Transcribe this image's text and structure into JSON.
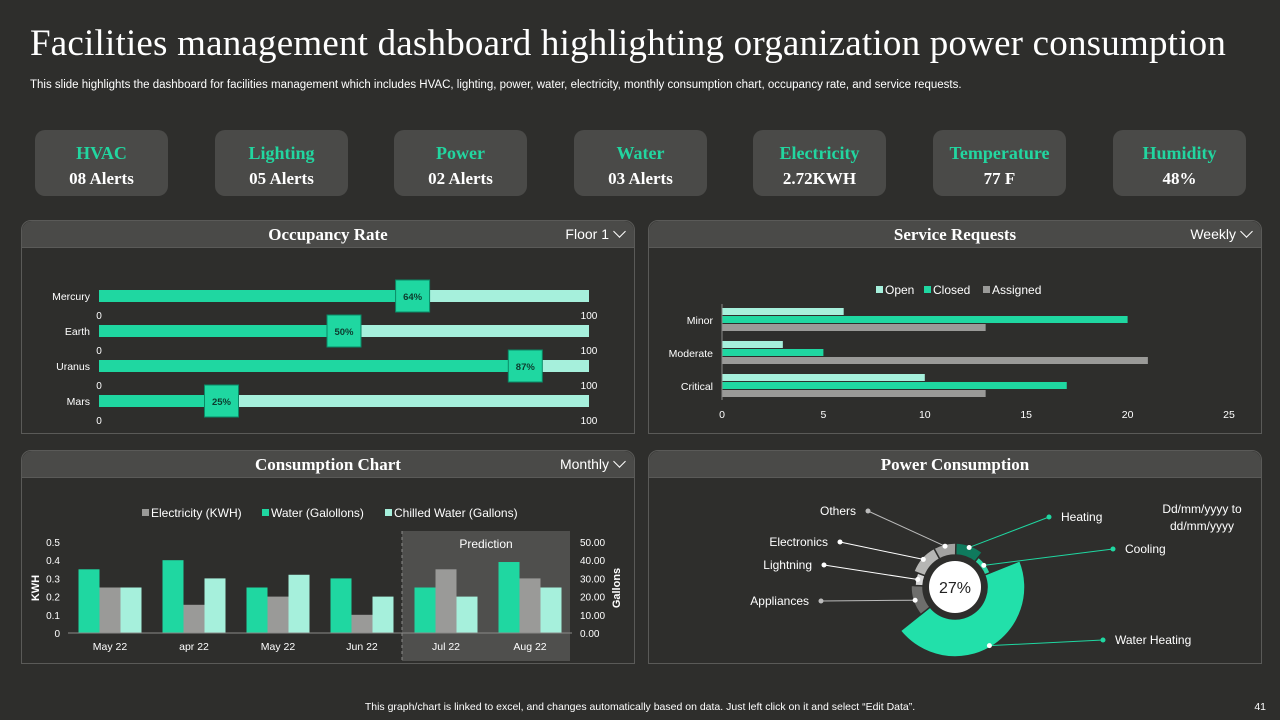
{
  "header": {
    "title": "Facilities management dashboard highlighting organization power consumption",
    "subtitle": "This slide highlights the dashboard for facilities management which includes HVAC, lighting, power, water, electricity,  monthly consumption chart, occupancy rate,  and service requests."
  },
  "kpis": [
    {
      "label": "HVAC",
      "value": "08 Alerts"
    },
    {
      "label": "Lighting",
      "value": "05 Alerts"
    },
    {
      "label": "Power",
      "value": "02 Alerts"
    },
    {
      "label": "Water",
      "value": "03 Alerts"
    },
    {
      "label": "Electricity",
      "value": "2.72KWH"
    },
    {
      "label": "Temperature",
      "value": "77  F"
    },
    {
      "label": "Humidity",
      "value": "48%"
    }
  ],
  "panels": {
    "occupancy": {
      "title": "Occupancy Rate",
      "dropdown": "Floor 1"
    },
    "service": {
      "title": "Service Requests",
      "dropdown": "Weekly"
    },
    "consumption": {
      "title": "Consumption Chart",
      "dropdown": "Monthly"
    },
    "power": {
      "title": "Power Consumption"
    }
  },
  "colors": {
    "accent": "#1fd7a1",
    "light": "#a6f0dc",
    "gray": "#9a9a98",
    "dark": "#2e2e2c",
    "panel": "#4a4a48"
  },
  "chart_data": [
    {
      "id": "occupancy",
      "type": "bar",
      "orientation": "horizontal",
      "title": "Occupancy Rate",
      "categories": [
        "Mercury",
        "Earth",
        "Uranus",
        "Mars"
      ],
      "values": [
        64,
        50,
        87,
        25
      ],
      "labels": [
        "64%",
        "50%",
        "87%",
        "25%"
      ],
      "axis_min": "0",
      "axis_max": "100",
      "xlim": [
        0,
        100
      ]
    },
    {
      "id": "service",
      "type": "bar",
      "orientation": "horizontal",
      "title": "Service Requests",
      "categories": [
        "Minor",
        "Moderate",
        "Critical"
      ],
      "series": [
        {
          "name": "Open",
          "values": [
            6,
            3,
            10
          ]
        },
        {
          "name": "Closed",
          "values": [
            20,
            5,
            17
          ]
        },
        {
          "name": "Assigned",
          "values": [
            13,
            21,
            13
          ]
        }
      ],
      "xticks": [
        "0",
        "5",
        "10",
        "15",
        "20",
        "25"
      ],
      "xlim": [
        0,
        25
      ],
      "legend": "top"
    },
    {
      "id": "consumption",
      "type": "bar",
      "title": "Consumption Chart",
      "categories": [
        "May 22",
        "apr 22",
        "May 22",
        "Jun 22",
        "Jul 22",
        "Aug 22"
      ],
      "series": [
        {
          "name": "Electricity (KWH)",
          "values": [
            0.35,
            0.4,
            0.25,
            0.3,
            0.25,
            0.39
          ]
        },
        {
          "name": "Water (Galollons)",
          "values": [
            0.25,
            0.155,
            0.2,
            0.1,
            0.35,
            0.3
          ]
        },
        {
          "name": "Chilled Water (Gallons)",
          "values": [
            0.25,
            0.3,
            0.32,
            0.2,
            0.2,
            0.25
          ]
        }
      ],
      "ylabel": "KWH",
      "y2label": "Gallons",
      "yticks": [
        "0",
        "0.1",
        "0.2",
        "0.3",
        "0.4",
        "0.5"
      ],
      "y2ticks": [
        "0.00",
        "10.00",
        "20.00",
        "30.00",
        "40.00",
        "50.00"
      ],
      "ylim": [
        0,
        0.5
      ],
      "prediction_label": "Prediction",
      "legend": "top"
    },
    {
      "id": "power",
      "type": "pie",
      "title": "Power Consumption",
      "center_label": "27%",
      "date_label": "Dd/mm/yyyy to dd/mm/yyyy",
      "slices": [
        {
          "label": "Heating",
          "value": 10
        },
        {
          "label": "Cooling",
          "value": 8
        },
        {
          "label": "Water Heating",
          "value": 44
        },
        {
          "label": "Appliances",
          "value": 11
        },
        {
          "label": "Lightning",
          "value": 5
        },
        {
          "label": "Electronics",
          "value": 11
        },
        {
          "label": "Others",
          "value": 8
        }
      ]
    }
  ],
  "footer": {
    "note": "This graph/chart is linked to excel, and changes automatically based on data. Just left click on it and select “Edit Data”.",
    "page": "41"
  }
}
